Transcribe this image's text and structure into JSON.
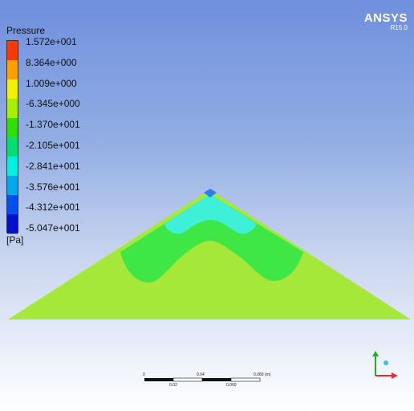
{
  "legend": {
    "title": "Pressure",
    "unit": "[Pa]",
    "labels": [
      "1.572e+001",
      "8.364e+000",
      "1.009e+000",
      "-6.345e+000",
      "-1.370e+001",
      "-2.105e+001",
      "-2.841e+001",
      "-3.576e+001",
      "-4.312e+001",
      "-5.047e+001"
    ],
    "colors": [
      "#ff3a00",
      "#ffa000",
      "#f0f000",
      "#a8f000",
      "#30e000",
      "#00e070",
      "#00f0e0",
      "#00a8f0",
      "#0050f0",
      "#0010d0"
    ]
  },
  "brand": {
    "name": "ANSYS",
    "version": "R15.0"
  },
  "scale": {
    "top_labels": [
      "0",
      "0.04",
      "0.080 (m)"
    ],
    "bottom_labels": [
      "0.02",
      "0.060"
    ]
  },
  "field_colors": {
    "outer": "#a6e83a",
    "band": "#3ee646",
    "cyan": "#3ff0d8",
    "tip": "#2b7ff0"
  },
  "triad": {
    "x_color": "#e03030",
    "y_color": "#20b020",
    "z_color": "#30c8d8"
  }
}
